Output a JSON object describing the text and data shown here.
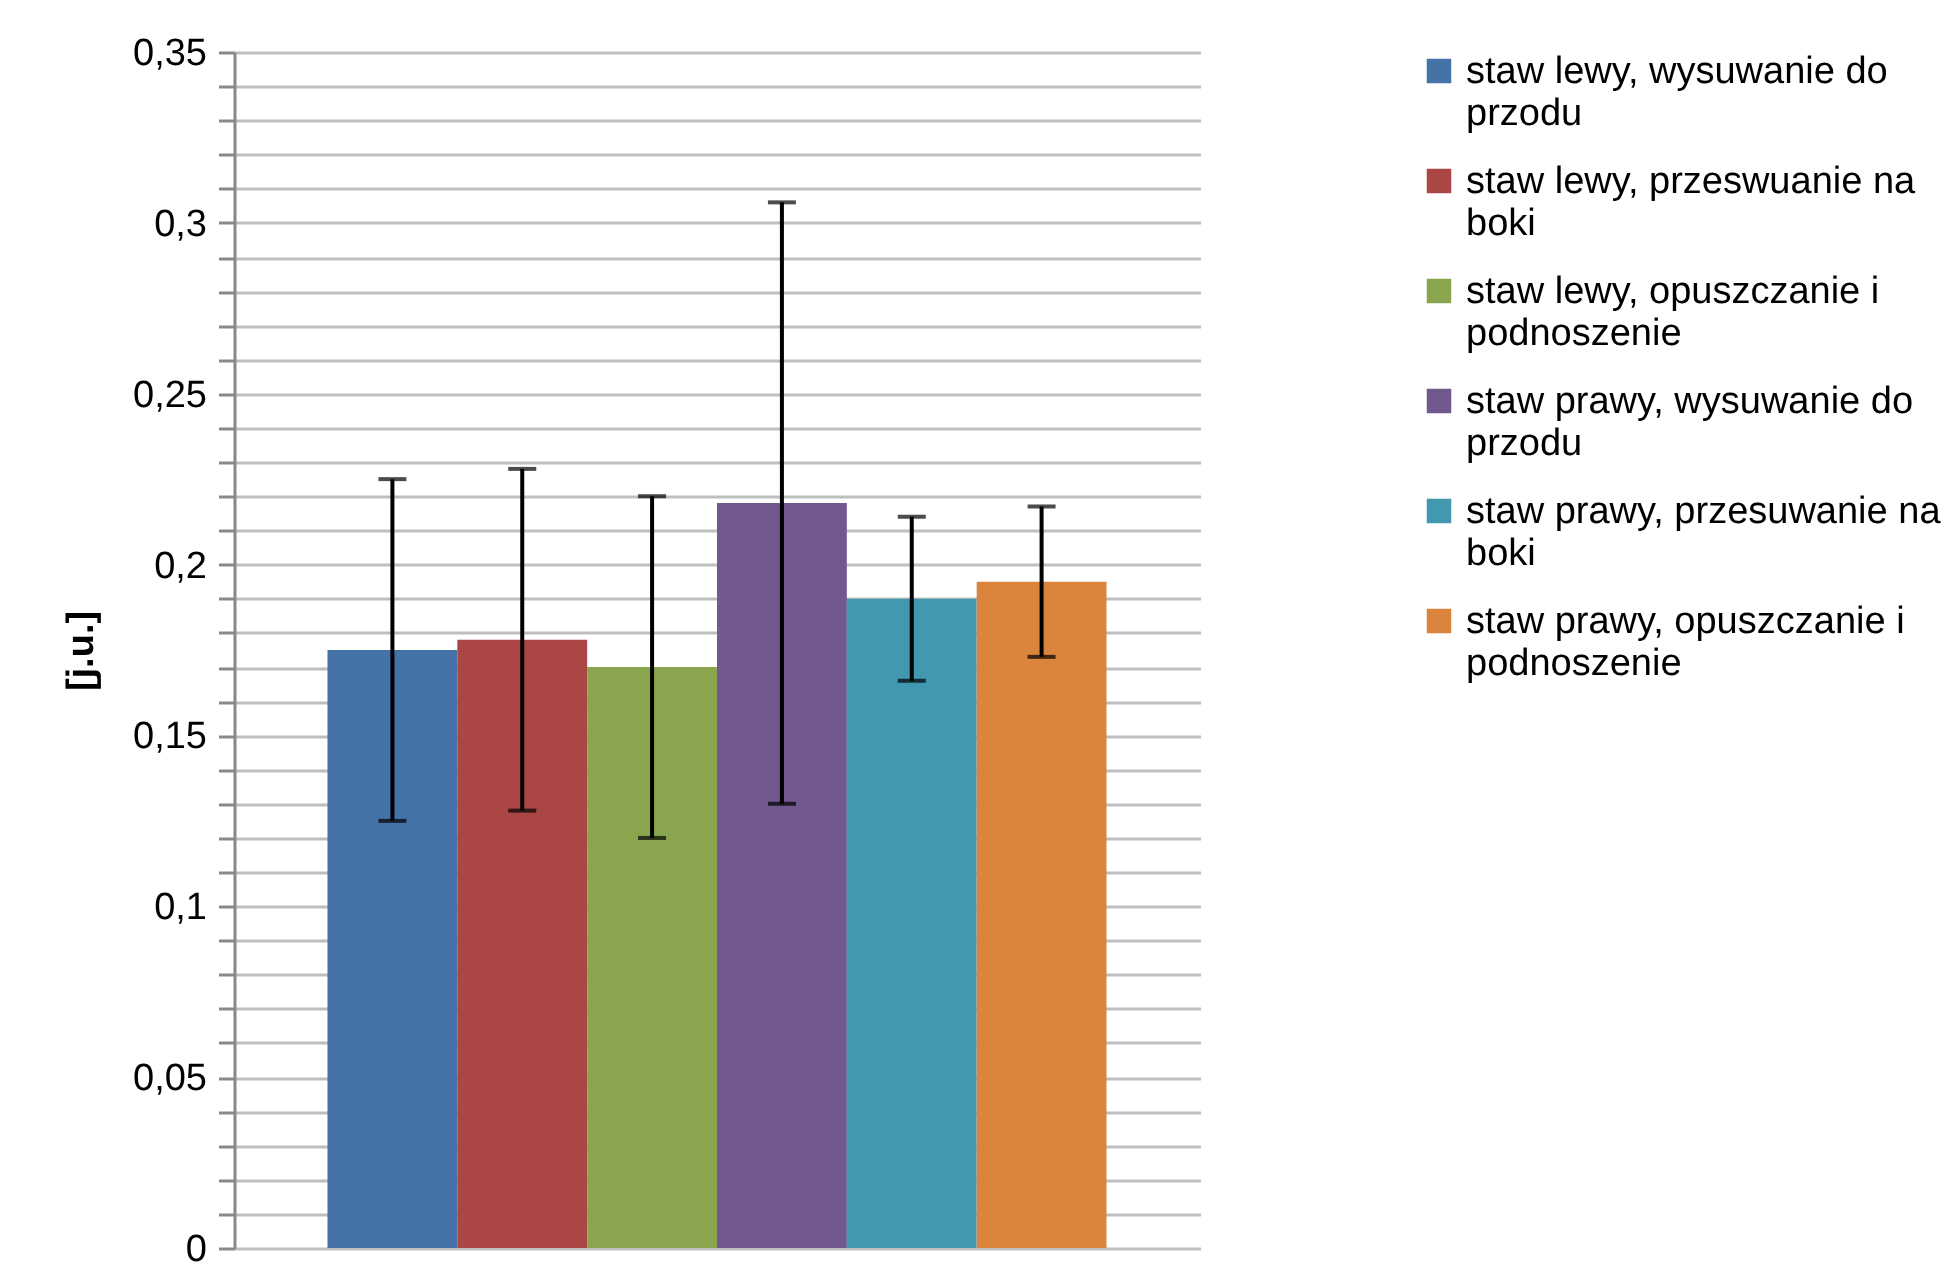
{
  "chart_data": {
    "type": "bar",
    "ylabel": "[j.u.]",
    "categories": [
      null
    ],
    "series": [
      {
        "name": "staw lewy, wysuwanie do przodu",
        "color": "#4572a7",
        "values": [
          0.175
        ],
        "errors": [
          0.05
        ]
      },
      {
        "name": "staw lewy, przeswuanie na boki",
        "color": "#aa4643",
        "values": [
          0.178
        ],
        "errors": [
          0.05
        ]
      },
      {
        "name": "staw lewy, opuszczanie i podnoszenie",
        "color": "#89a54e",
        "values": [
          0.17
        ],
        "errors": [
          0.05
        ]
      },
      {
        "name": "staw prawy, wysuwanie do przodu",
        "color": "#71588f",
        "values": [
          0.218
        ],
        "errors": [
          0.088
        ]
      },
      {
        "name": "staw prawy, przesuwanie na boki",
        "color": "#4198af",
        "values": [
          0.19
        ],
        "errors": [
          0.024
        ]
      },
      {
        "name": "staw prawy, opuszczanie i podnoszenie",
        "color": "#db843d",
        "values": [
          0.195
        ],
        "errors": [
          0.022
        ]
      }
    ],
    "ylim": [
      0,
      0.35
    ],
    "yticks": [
      {
        "value": 0,
        "label": "0"
      },
      {
        "value": 0.01,
        "label": null
      },
      {
        "value": 0.02,
        "label": null
      },
      {
        "value": 0.03,
        "label": null
      },
      {
        "value": 0.04,
        "label": null
      },
      {
        "value": 0.05,
        "label": "0,05"
      },
      {
        "value": 0.06,
        "label": null
      },
      {
        "value": 0.07,
        "label": null
      },
      {
        "value": 0.08,
        "label": null
      },
      {
        "value": 0.09,
        "label": null
      },
      {
        "value": 0.1,
        "label": "0,1"
      },
      {
        "value": 0.11,
        "label": null
      },
      {
        "value": 0.12,
        "label": null
      },
      {
        "value": 0.13,
        "label": null
      },
      {
        "value": 0.14,
        "label": null
      },
      {
        "value": 0.15,
        "label": "0,15"
      },
      {
        "value": 0.16,
        "label": null
      },
      {
        "value": 0.17,
        "label": null
      },
      {
        "value": 0.18,
        "label": null
      },
      {
        "value": 0.19,
        "label": null
      },
      {
        "value": 0.2,
        "label": "0,2"
      },
      {
        "value": 0.21,
        "label": null
      },
      {
        "value": 0.22,
        "label": null
      },
      {
        "value": 0.23,
        "label": null
      },
      {
        "value": 0.24,
        "label": null
      },
      {
        "value": 0.25,
        "label": "0,25"
      },
      {
        "value": 0.26,
        "label": null
      },
      {
        "value": 0.27,
        "label": null
      },
      {
        "value": 0.28,
        "label": null
      },
      {
        "value": 0.29,
        "label": null
      },
      {
        "value": 0.3,
        "label": "0,3"
      },
      {
        "value": 0.31,
        "label": null
      },
      {
        "value": 0.32,
        "label": null
      },
      {
        "value": 0.33,
        "label": null
      },
      {
        "value": 0.34,
        "label": null
      },
      {
        "value": 0.35,
        "label": "0,35"
      }
    ],
    "grid": true,
    "legend": "right",
    "tick_labels": "y"
  }
}
